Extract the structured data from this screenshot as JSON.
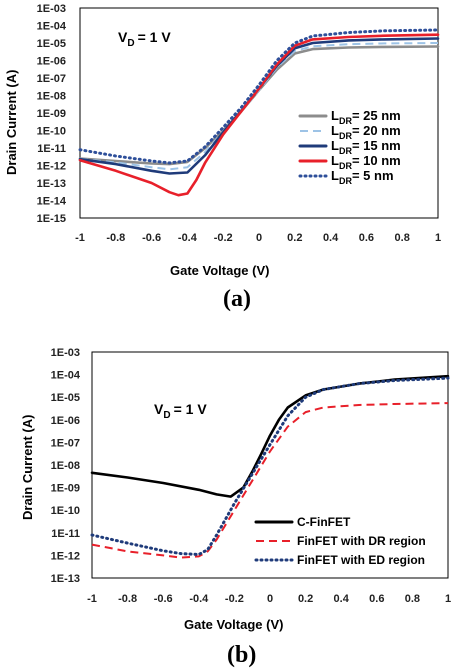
{
  "chart_data": [
    {
      "type": "line",
      "panel_label": "(a)",
      "annotation": "V",
      "annotation_sub": "D",
      "annotation_rest": "= 1 V",
      "xlabel": "Gate Voltage (V)",
      "ylabel": "Drain Current (A)",
      "xlim": [
        -1,
        1
      ],
      "ylim_exp": [
        -15,
        -3
      ],
      "x_ticks": [
        "-1",
        "-0.8",
        "-0.6",
        "-0.4",
        "-0.2",
        "0",
        "0.2",
        "0.4",
        "0.6",
        "0.8",
        "1"
      ],
      "y_ticks": [
        "1E-15",
        "1E-14",
        "1E-13",
        "1E-12",
        "1E-11",
        "1E-10",
        "1E-09",
        "1E-08",
        "1E-07",
        "1E-06",
        "1E-05",
        "1E-04",
        "1E-03"
      ],
      "log_scale_y": true,
      "legend_position": "right",
      "series": [
        {
          "name": "L",
          "name_sub": "DR",
          "name_rest": "= 25 nm",
          "color": "#8c8c8c",
          "style": "solid",
          "x": [
            -1,
            -0.8,
            -0.6,
            -0.5,
            -0.4,
            -0.3,
            -0.2,
            -0.1,
            0,
            0.1,
            0.2,
            0.3,
            0.5,
            0.7,
            1
          ],
          "y": [
            2.5e-12,
            1.8e-12,
            1.3e-12,
            1.2e-12,
            1.6e-12,
            1e-11,
            1e-10,
            1.2e-09,
            2e-08,
            3e-07,
            2.5e-06,
            4.5e-06,
            5.5e-06,
            6e-06,
            6.3e-06
          ]
        },
        {
          "name": "L",
          "name_sub": "DR",
          "name_rest": "= 20 nm",
          "color": "#9dc3e6",
          "style": "dashed",
          "x": [
            -1,
            -0.8,
            -0.6,
            -0.5,
            -0.4,
            -0.3,
            -0.2,
            -0.1,
            0,
            0.1,
            0.2,
            0.3,
            0.5,
            0.7,
            1
          ],
          "y": [
            2.4e-12,
            1.5e-12,
            8e-13,
            6e-13,
            8e-13,
            6e-12,
            9e-11,
            1.2e-09,
            2e-08,
            4e-07,
            3.5e-06,
            6.5e-06,
            8.5e-06,
            9.5e-06,
            1e-05
          ]
        },
        {
          "name": "L",
          "name_sub": "DR",
          "name_rest": "= 15 nm",
          "color": "#1f3b7a",
          "style": "solid",
          "x": [
            -1,
            -0.8,
            -0.6,
            -0.5,
            -0.4,
            -0.3,
            -0.2,
            -0.1,
            0,
            0.1,
            0.2,
            0.3,
            0.5,
            0.7,
            1
          ],
          "y": [
            2.3e-12,
            1.2e-12,
            5e-13,
            3.5e-13,
            4e-13,
            4e-12,
            8e-11,
            1.3e-09,
            2.5e-08,
            5e-07,
            5e-06,
            1e-05,
            1.4e-05,
            1.6e-05,
            1.8e-05
          ]
        },
        {
          "name": "L",
          "name_sub": "DR",
          "name_rest": "= 10 nm",
          "color": "#e8202a",
          "style": "solid",
          "x": [
            -1,
            -0.8,
            -0.6,
            -0.5,
            -0.45,
            -0.4,
            -0.35,
            -0.3,
            -0.2,
            -0.1,
            0,
            0.1,
            0.2,
            0.3,
            0.5,
            0.7,
            1
          ],
          "y": [
            2e-12,
            5e-13,
            1e-13,
            3e-14,
            2e-14,
            2.5e-14,
            1.5e-13,
            1.5e-12,
            6e-11,
            1.2e-09,
            2.5e-08,
            6e-07,
            7e-06,
            1.6e-05,
            2.2e-05,
            2.6e-05,
            3e-05
          ]
        },
        {
          "name": "L",
          "name_sub": "DR",
          "name_rest": "= 5 nm",
          "color": "#2e4f9a",
          "style": "dotted",
          "x": [
            -1,
            -0.8,
            -0.6,
            -0.5,
            -0.4,
            -0.3,
            -0.2,
            -0.1,
            0,
            0.1,
            0.2,
            0.3,
            0.5,
            0.7,
            1
          ],
          "y": [
            8e-12,
            3.5e-12,
            1.8e-12,
            1.4e-12,
            1.8e-12,
            1.2e-11,
            1.5e-10,
            2e-09,
            4e-08,
            1e-06,
            1e-05,
            2.5e-05,
            4e-05,
            5e-05,
            5.5e-05
          ]
        }
      ]
    },
    {
      "type": "line",
      "panel_label": "(b)",
      "annotation": "V",
      "annotation_sub": "D",
      "annotation_rest": "= 1 V",
      "xlabel": "Gate Voltage (V)",
      "ylabel": "Drain Current (A)",
      "xlim": [
        -1,
        1
      ],
      "ylim_exp": [
        -13,
        -3
      ],
      "x_ticks": [
        "-1",
        "-0.8",
        "-0.6",
        "-0.4",
        "-0.2",
        "0",
        "0.2",
        "0.4",
        "0.6",
        "0.8",
        "1"
      ],
      "y_ticks": [
        "1E-13",
        "1E-12",
        "1E-11",
        "1E-10",
        "1E-09",
        "1E-08",
        "1E-07",
        "1E-06",
        "1E-05",
        "1E-04",
        "1E-03"
      ],
      "log_scale_y": true,
      "legend_position": "bottom-right",
      "series": [
        {
          "name": "C-FinFET",
          "color": "#000000",
          "style": "solid",
          "x": [
            -1,
            -0.8,
            -0.6,
            -0.4,
            -0.3,
            -0.22,
            -0.15,
            -0.1,
            -0.05,
            0,
            0.05,
            0.1,
            0.2,
            0.3,
            0.5,
            0.7,
            1
          ],
          "y": [
            4.5e-09,
            2.8e-09,
            1.6e-09,
            8e-10,
            5e-10,
            4e-10,
            1e-09,
            5e-09,
            3e-08,
            2e-07,
            1e-06,
            3.5e-06,
            1.2e-05,
            2.2e-05,
            4e-05,
            6e-05,
            8.5e-05
          ]
        },
        {
          "name": "FinFET with DR region",
          "color": "#e8202a",
          "style": "dashed",
          "x": [
            -1,
            -0.8,
            -0.6,
            -0.5,
            -0.4,
            -0.35,
            -0.3,
            -0.2,
            -0.1,
            0,
            0.1,
            0.2,
            0.3,
            0.5,
            0.7,
            1
          ],
          "y": [
            3e-12,
            1.5e-12,
            1e-12,
            8e-13,
            9e-13,
            1.5e-12,
            5e-12,
            1e-10,
            2e-09,
            4e-08,
            5e-07,
            2.2e-06,
            3.5e-06,
            4.5e-06,
            5e-06,
            5.5e-06
          ]
        },
        {
          "name": "FinFET with ED region",
          "color": "#1f3b7a",
          "style": "dotted",
          "x": [
            -1,
            -0.8,
            -0.6,
            -0.5,
            -0.4,
            -0.35,
            -0.3,
            -0.2,
            -0.1,
            0,
            0.1,
            0.2,
            0.3,
            0.5,
            0.7,
            1
          ],
          "y": [
            8e-12,
            3.5e-12,
            1.6e-12,
            1.2e-12,
            1.1e-12,
            1.8e-12,
            8e-12,
            2e-10,
            4e-09,
            8e-08,
            1.5e-06,
            1e-05,
            2.2e-05,
            4e-05,
            5.5e-05,
            7e-05
          ]
        }
      ]
    }
  ]
}
